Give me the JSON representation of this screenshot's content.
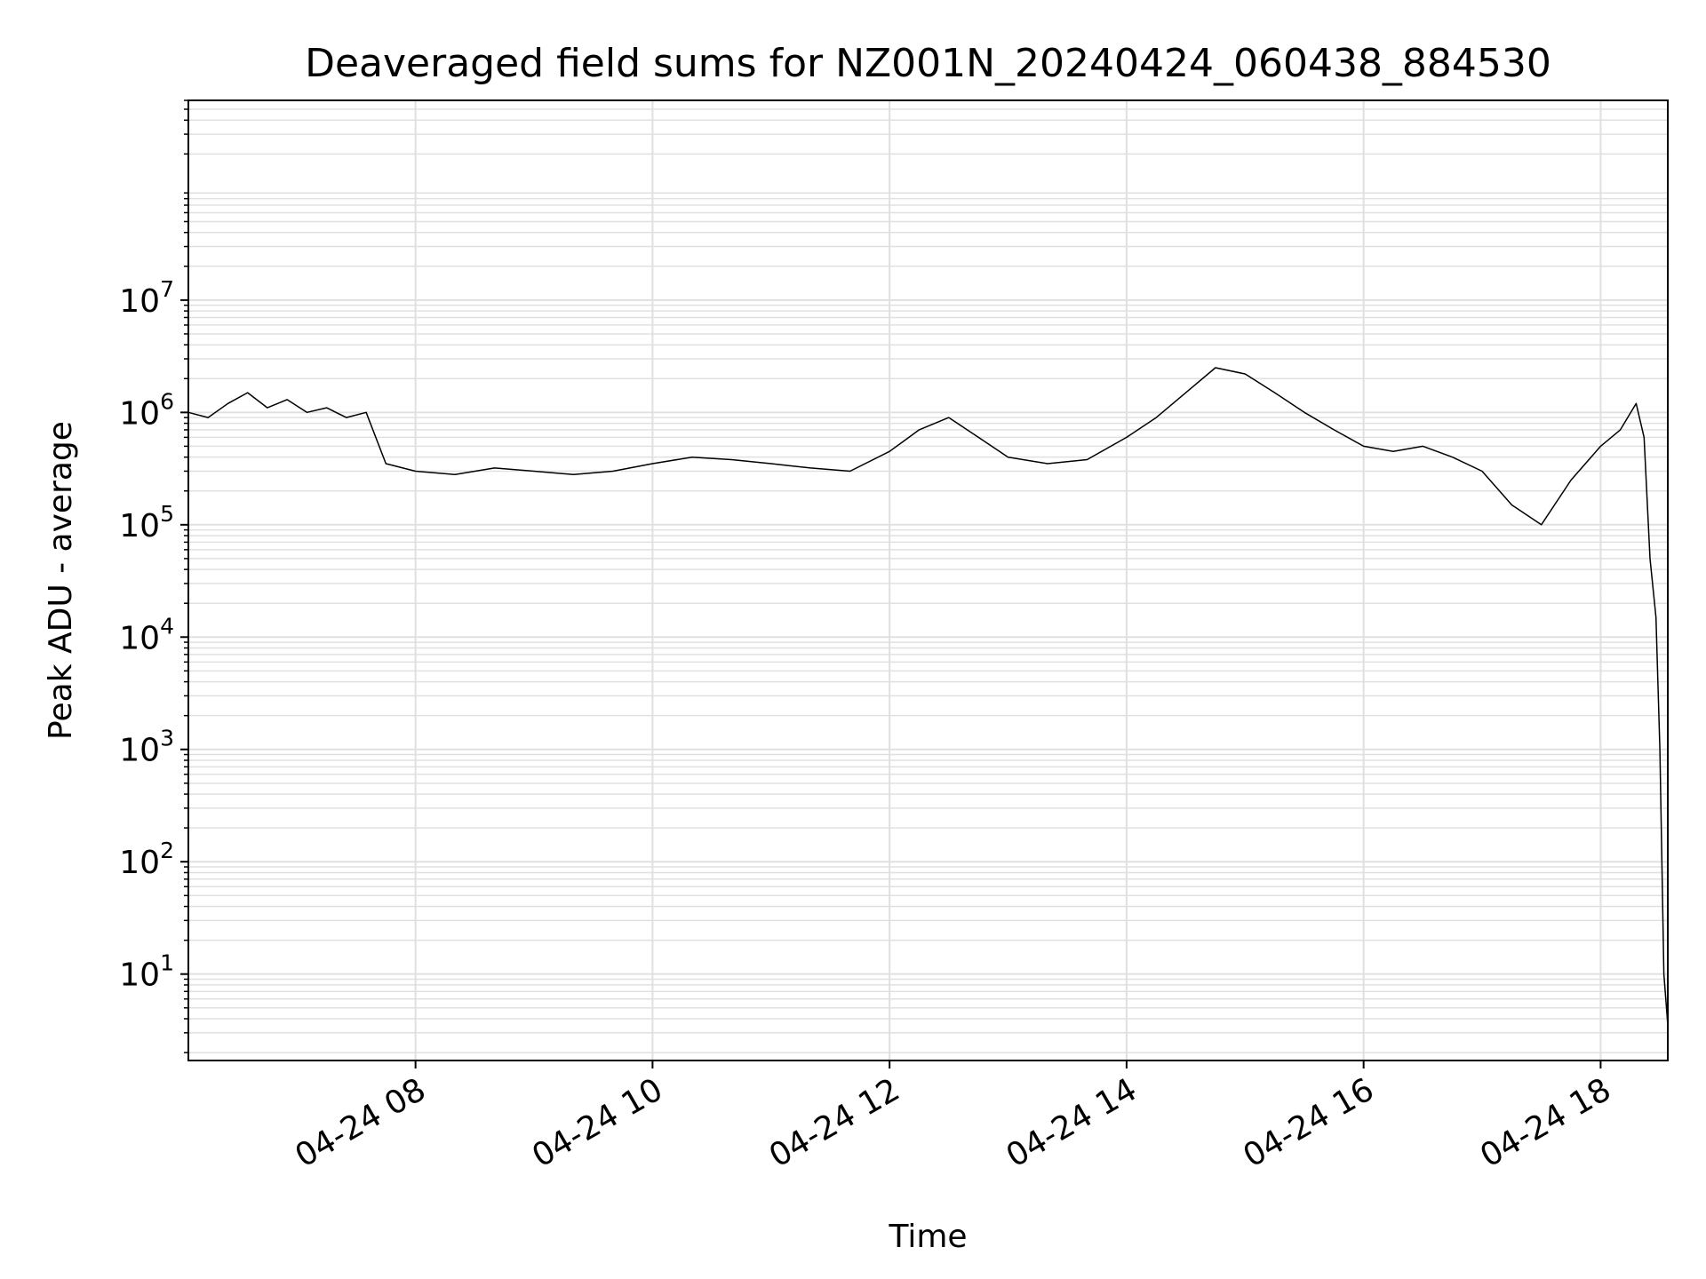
{
  "chart_data": {
    "type": "line",
    "title": "Deaveraged field sums for NZ001N_20240424_060438_884530",
    "xlabel": "Time",
    "ylabel": "Peak ADU - average",
    "yscale": "log",
    "grid": true,
    "legend": "none",
    "line_color": "#000000",
    "grid_color": "#e0e0e0",
    "xlim": [
      "2024-04-24 06:05",
      "2024-04-24 18:34"
    ],
    "ylim": [
      1.7,
      600000000
    ],
    "x_ticks": [
      {
        "value": "2024-04-24 08:00",
        "label": "04-24 08"
      },
      {
        "value": "2024-04-24 10:00",
        "label": "04-24 10"
      },
      {
        "value": "2024-04-24 12:00",
        "label": "04-24 12"
      },
      {
        "value": "2024-04-24 14:00",
        "label": "04-24 14"
      },
      {
        "value": "2024-04-24 16:00",
        "label": "04-24 16"
      },
      {
        "value": "2024-04-24 18:00",
        "label": "04-24 18"
      }
    ],
    "y_ticks": [
      {
        "value": 10,
        "base": "10",
        "exp": "1"
      },
      {
        "value": 100,
        "base": "10",
        "exp": "2"
      },
      {
        "value": 1000,
        "base": "10",
        "exp": "3"
      },
      {
        "value": 10000,
        "base": "10",
        "exp": "4"
      },
      {
        "value": 100000,
        "base": "10",
        "exp": "5"
      },
      {
        "value": 1000000,
        "base": "10",
        "exp": "6"
      },
      {
        "value": 10000000,
        "base": "10",
        "exp": "7"
      }
    ],
    "series": [
      {
        "name": "",
        "x": [
          "2024-04-24 06:05",
          "2024-04-24 06:15",
          "2024-04-24 06:25",
          "2024-04-24 06:35",
          "2024-04-24 06:45",
          "2024-04-24 06:55",
          "2024-04-24 07:05",
          "2024-04-24 07:15",
          "2024-04-24 07:25",
          "2024-04-24 07:35",
          "2024-04-24 07:45",
          "2024-04-24 08:00",
          "2024-04-24 08:20",
          "2024-04-24 08:40",
          "2024-04-24 09:00",
          "2024-04-24 09:20",
          "2024-04-24 09:40",
          "2024-04-24 10:00",
          "2024-04-24 10:20",
          "2024-04-24 10:40",
          "2024-04-24 11:00",
          "2024-04-24 11:20",
          "2024-04-24 11:40",
          "2024-04-24 12:00",
          "2024-04-24 12:15",
          "2024-04-24 12:30",
          "2024-04-24 12:45",
          "2024-04-24 13:00",
          "2024-04-24 13:20",
          "2024-04-24 13:40",
          "2024-04-24 14:00",
          "2024-04-24 14:15",
          "2024-04-24 14:30",
          "2024-04-24 14:45",
          "2024-04-24 15:00",
          "2024-04-24 15:15",
          "2024-04-24 15:30",
          "2024-04-24 15:45",
          "2024-04-24 16:00",
          "2024-04-24 16:15",
          "2024-04-24 16:30",
          "2024-04-24 16:45",
          "2024-04-24 17:00",
          "2024-04-24 17:15",
          "2024-04-24 17:30",
          "2024-04-24 17:45",
          "2024-04-24 18:00",
          "2024-04-24 18:10",
          "2024-04-24 18:18",
          "2024-04-24 18:22",
          "2024-04-24 18:25",
          "2024-04-24 18:28",
          "2024-04-24 18:30",
          "2024-04-24 18:32",
          "2024-04-24 18:34"
        ],
        "values": [
          1000000,
          900000,
          1200000,
          1500000,
          1100000,
          1300000,
          1000000,
          1100000,
          900000,
          1000000,
          350000,
          300000,
          280000,
          320000,
          300000,
          280000,
          300000,
          350000,
          400000,
          380000,
          350000,
          320000,
          300000,
          450000,
          700000,
          900000,
          600000,
          400000,
          350000,
          380000,
          600000,
          900000,
          1500000,
          2500000,
          2200000,
          1500000,
          1000000,
          700000,
          500000,
          450000,
          500000,
          400000,
          300000,
          150000,
          100000,
          250000,
          500000,
          700000,
          1200000,
          600000,
          50000,
          15000,
          1000,
          10,
          3.5
        ]
      }
    ]
  }
}
